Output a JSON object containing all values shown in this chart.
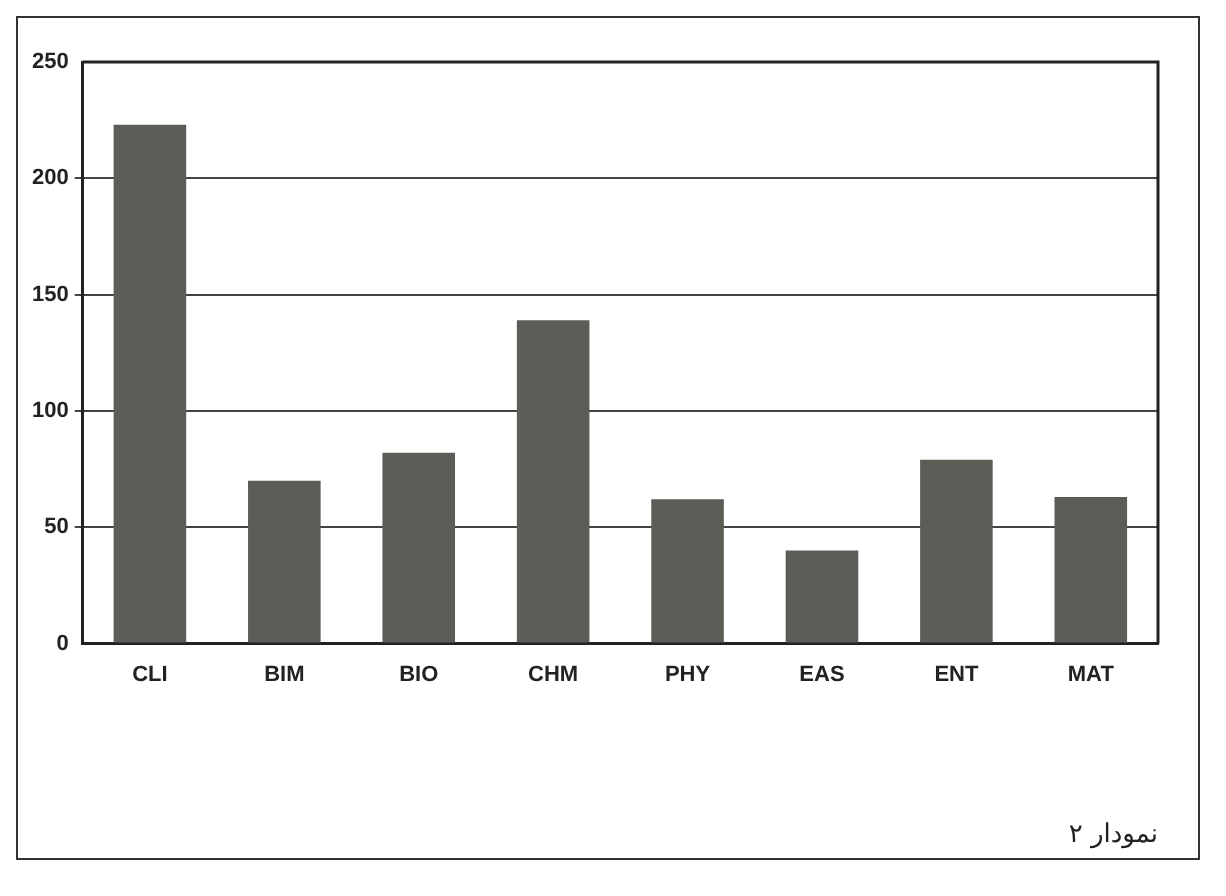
{
  "chart_data": {
    "type": "bar",
    "categories": [
      "CLI",
      "BIM",
      "BIO",
      "CHM",
      "PHY",
      "EAS",
      "ENT",
      "MAT"
    ],
    "values": [
      223,
      70,
      82,
      139,
      62,
      40,
      79,
      63
    ],
    "color": "#5b5e57",
    "ylim": [
      0,
      250
    ],
    "yticks": [
      0,
      50,
      100,
      150,
      200,
      250
    ],
    "grid": "y",
    "legend": false,
    "annotations": [
      "نمودار ۲"
    ]
  }
}
